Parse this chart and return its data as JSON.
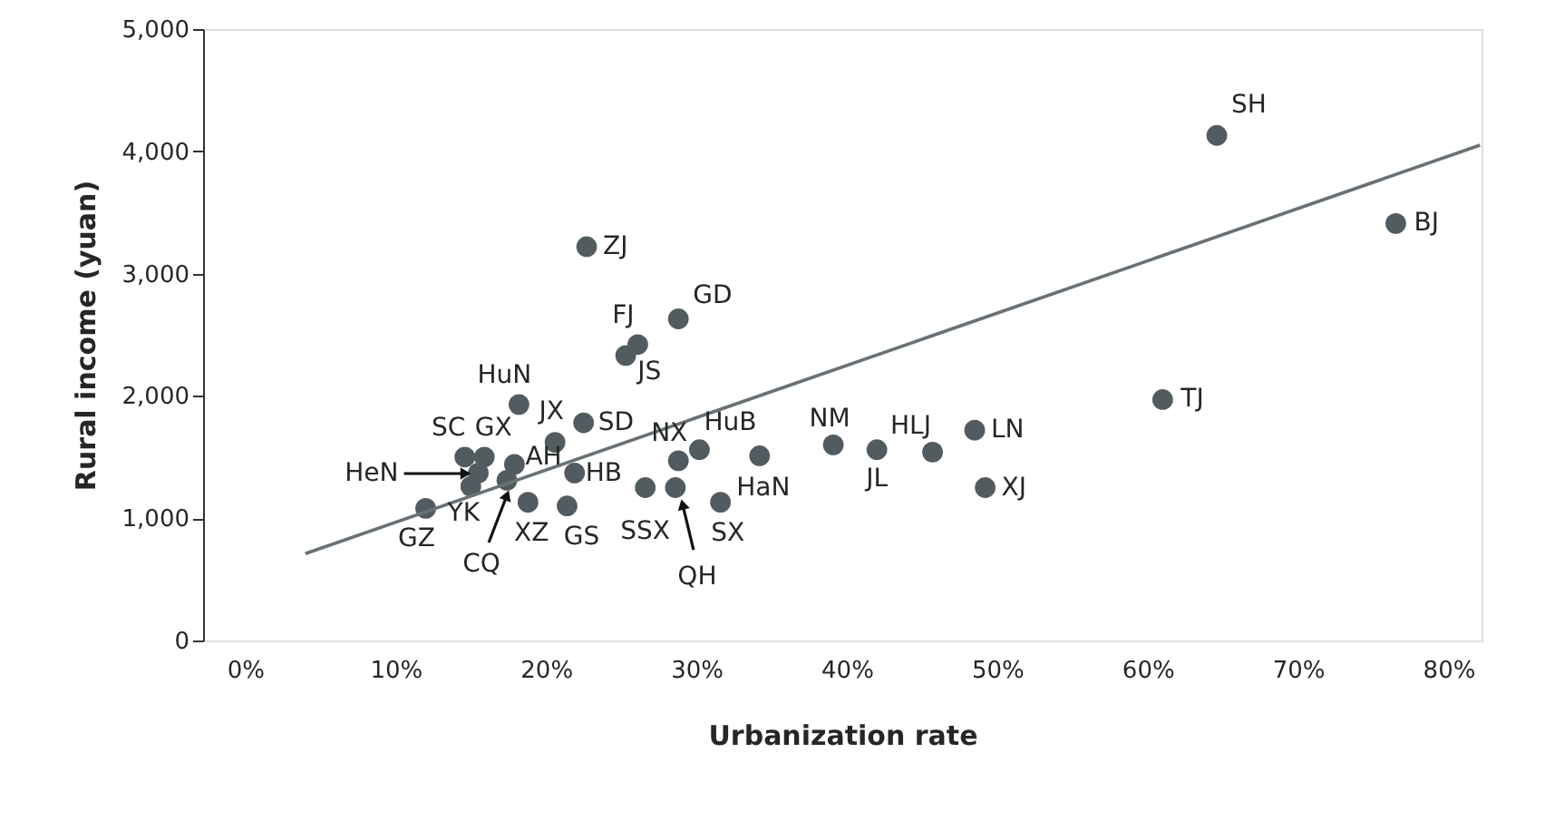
{
  "chart_data": {
    "type": "scatter",
    "xlabel": "Urbanization rate",
    "ylabel": "Rural income (yuan)",
    "xlim": [
      -2.8,
      82.2
    ],
    "xticks": [
      {
        "value": 0,
        "label": "0%"
      },
      {
        "value": 10,
        "label": "10%"
      },
      {
        "value": 20,
        "label": "20%"
      },
      {
        "value": 30,
        "label": "30%"
      },
      {
        "value": 40,
        "label": "40%"
      },
      {
        "value": 50,
        "label": "50%"
      },
      {
        "value": 60,
        "label": "60%"
      },
      {
        "value": 70,
        "label": "70%"
      },
      {
        "value": 80,
        "label": "80%"
      }
    ],
    "ylim": [
      0,
      5000
    ],
    "yticks": [
      {
        "value": 0,
        "label": "0"
      },
      {
        "value": 1000,
        "label": "1,000"
      },
      {
        "value": 2000,
        "label": "2,000"
      },
      {
        "value": 3000,
        "label": "3,000"
      },
      {
        "value": 4000,
        "label": "4,000"
      },
      {
        "value": 5000,
        "label": "5,000"
      }
    ],
    "grid": false,
    "legend": false,
    "marker": "circle",
    "series": [
      {
        "color": "#525c60",
        "x": [
          64.6,
          76.5,
          61.0,
          22.7,
          28.8,
          26.1,
          25.3,
          18.2,
          22.5,
          20.6,
          14.6,
          15.9,
          15.5,
          15.0,
          12.0,
          17.4,
          18.8,
          21.4,
          17.9,
          21.9,
          28.8,
          30.2,
          26.6,
          28.6,
          31.6,
          34.2,
          39.1,
          42.0,
          45.7,
          48.5,
          49.2
        ],
        "values": [
          4130,
          3410,
          1970,
          3220,
          2630,
          2420,
          2330,
          1930,
          1780,
          1620,
          1500,
          1500,
          1370,
          1260,
          1080,
          1310,
          1130,
          1100,
          1440,
          1370,
          1470,
          1560,
          1250,
          1250,
          1130,
          1510,
          1600,
          1560,
          1540,
          1720,
          1250
        ]
      },
      {
        "type": "line",
        "color": "#687276",
        "line_style": "solid",
        "marker": "none",
        "x": [
          4.0,
          82.1
        ],
        "values": [
          710,
          4050
        ]
      }
    ],
    "annotations": [
      {
        "text": "SH",
        "x": 64.6,
        "y": 4125
      },
      {
        "text": "BJ",
        "x": 76.5,
        "y": 3412
      },
      {
        "text": "TJ",
        "x": 61.0,
        "y": 1973
      },
      {
        "text": "ZJ",
        "x": 22.7,
        "y": 3220
      },
      {
        "text": "GD",
        "x": 28.8,
        "y": 2626
      },
      {
        "text": "FJ",
        "x": 26.1,
        "y": 2418
      },
      {
        "text": "JS",
        "x": 25.3,
        "y": 2329
      },
      {
        "text": "HuN",
        "x": 18.2,
        "y": 1929
      },
      {
        "text": "SD",
        "x": 22.5,
        "y": 1780
      },
      {
        "text": "JX",
        "x": 20.6,
        "y": 1617
      },
      {
        "text": "SC",
        "x": 14.6,
        "y": 1500
      },
      {
        "text": "GX",
        "x": 15.9,
        "y": 1500
      },
      {
        "text": "HeN",
        "x": 15.5,
        "y": 1365
      },
      {
        "text": "YK",
        "x": 15.0,
        "y": 1261
      },
      {
        "text": "GZ",
        "x": 12.0,
        "y": 1083
      },
      {
        "text": "CQ",
        "x": 17.4,
        "y": 1306
      },
      {
        "text": "XZ",
        "x": 18.8,
        "y": 1128
      },
      {
        "text": "GS",
        "x": 21.4,
        "y": 1098
      },
      {
        "text": "AH",
        "x": 17.9,
        "y": 1439
      },
      {
        "text": "HB",
        "x": 21.9,
        "y": 1365
      },
      {
        "text": "NX",
        "x": 28.8,
        "y": 1469
      },
      {
        "text": "HuB",
        "x": 30.2,
        "y": 1558
      },
      {
        "text": "SSX",
        "x": 26.6,
        "y": 1246
      },
      {
        "text": "QH",
        "x": 28.6,
        "y": 1246
      },
      {
        "text": "SX",
        "x": 31.6,
        "y": 1128
      },
      {
        "text": "HaN",
        "x": 34.2,
        "y": 1513
      },
      {
        "text": "NM",
        "x": 39.1,
        "y": 1602
      },
      {
        "text": "JL",
        "x": 42.0,
        "y": 1558
      },
      {
        "text": "HLJ",
        "x": 45.7,
        "y": 1543
      },
      {
        "text": "LN",
        "x": 48.5,
        "y": 1721
      },
      {
        "text": "XJ",
        "x": 49.2,
        "y": 1246
      }
    ]
  }
}
